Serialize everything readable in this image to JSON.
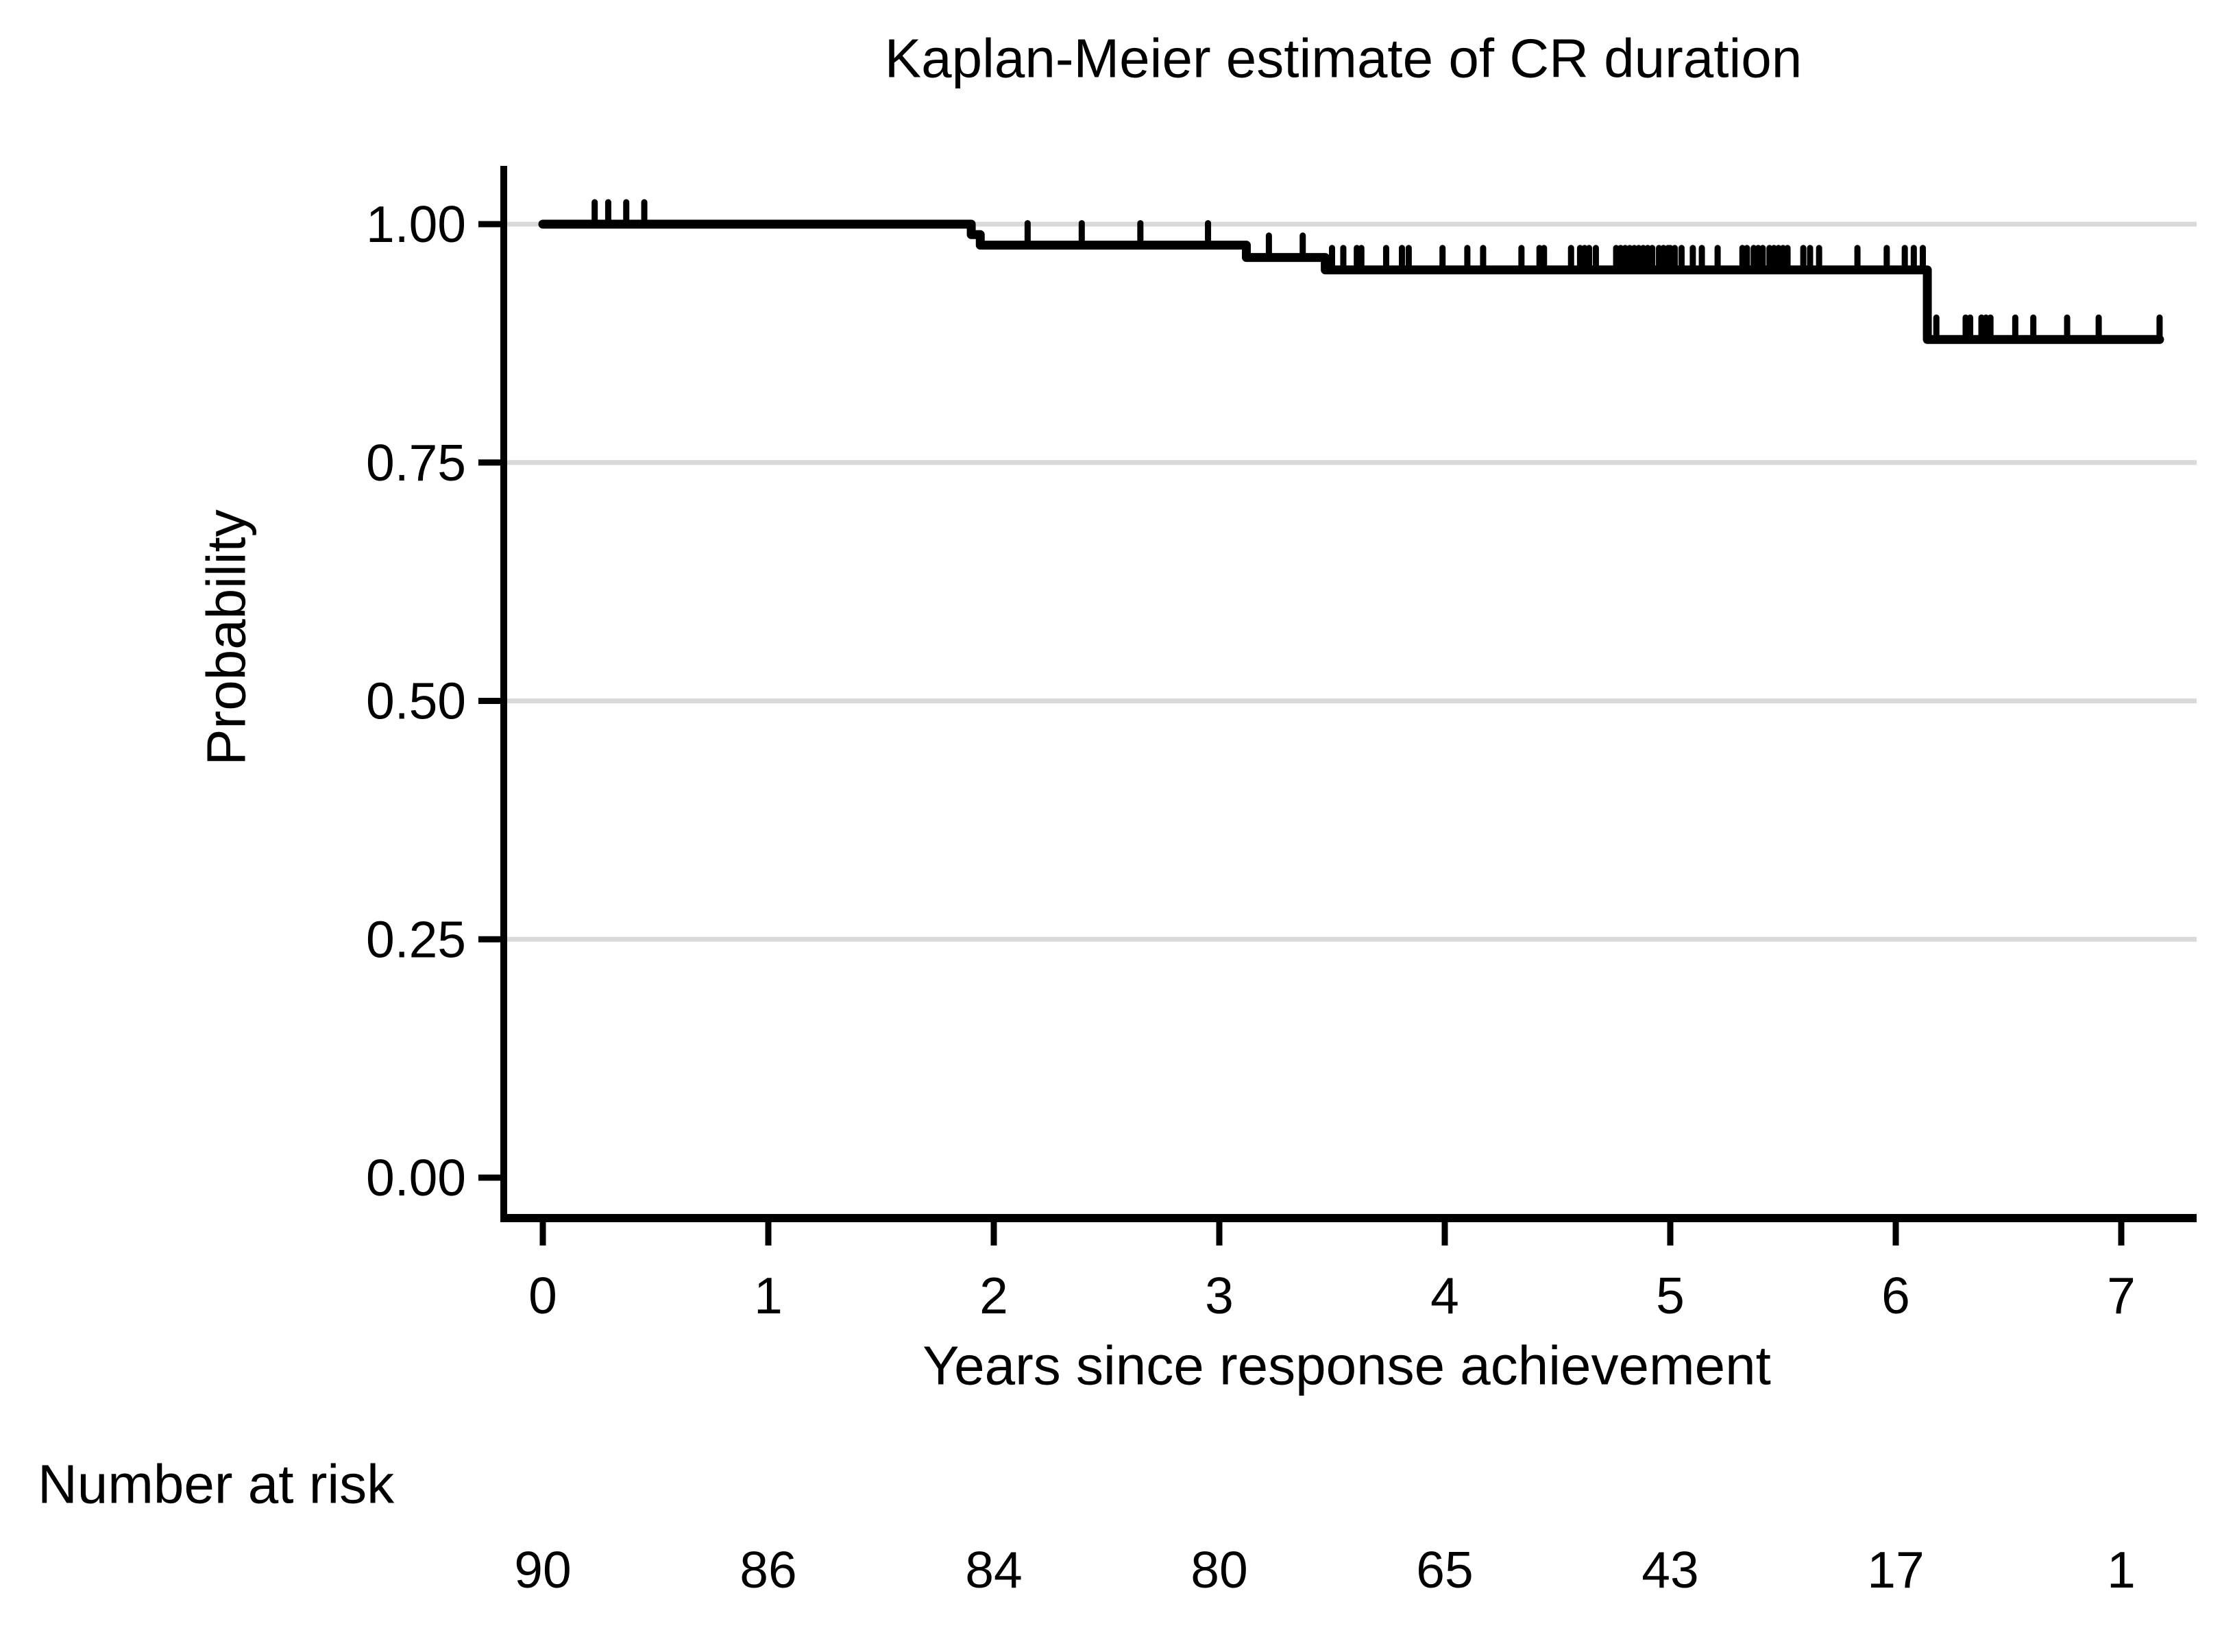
{
  "chart_data": {
    "type": "line",
    "subtype": "kaplan-meier-step",
    "title": "Kaplan-Meier estimate of CR duration",
    "xlabel": "Years since response achievement",
    "ylabel": "Probability",
    "x_ticks": [
      0,
      1,
      2,
      3,
      4,
      5,
      6,
      7
    ],
    "x_tick_labels": [
      "0",
      "1",
      "2",
      "3",
      "4",
      "5",
      "6",
      "7"
    ],
    "y_ticks": [
      0.0,
      0.25,
      0.5,
      0.75,
      1.0
    ],
    "y_tick_labels": [
      "0.00",
      "0.25",
      "0.50",
      "0.75",
      "1.00"
    ],
    "grid": true,
    "grid_levels": [
      0.25,
      0.5,
      0.75,
      1.0
    ],
    "xlim": [
      -0.17,
      7.35
    ],
    "ylim": [
      -0.04,
      1.06
    ],
    "legend": "none",
    "series_name": "CR duration",
    "segments": [
      {
        "t_start": 0.0,
        "t_end": 1.9,
        "p": 1.0,
        "censors": [
          0.23,
          0.29,
          0.37,
          0.45
        ]
      },
      {
        "t_start": 1.9,
        "t_end": 1.94,
        "p": 0.989,
        "censors": []
      },
      {
        "t_start": 1.94,
        "t_end": 3.12,
        "p": 0.978,
        "censors": [
          2.15,
          2.39,
          2.65,
          2.95
        ]
      },
      {
        "t_start": 3.12,
        "t_end": 3.47,
        "p": 0.965,
        "censors": [
          3.22,
          3.37
        ]
      },
      {
        "t_start": 3.47,
        "t_end": 6.14,
        "p": 0.952,
        "censors": [
          3.5,
          3.55,
          3.61,
          3.63,
          3.74,
          3.81,
          3.84,
          3.99,
          4.1,
          4.17,
          4.34,
          4.42,
          4.44,
          4.56,
          4.6,
          4.62,
          4.64,
          4.67,
          4.76,
          4.78,
          4.8,
          4.82,
          4.84,
          4.86,
          4.88,
          4.9,
          4.92,
          4.95,
          4.97,
          4.99,
          5.0,
          5.02,
          5.05,
          5.1,
          5.14,
          5.21,
          5.32,
          5.34,
          5.37,
          5.39,
          5.41,
          5.44,
          5.46,
          5.48,
          5.5,
          5.52,
          5.59,
          5.62,
          5.66,
          5.83,
          5.96,
          6.04,
          6.08,
          6.12
        ]
      },
      {
        "t_start": 6.14,
        "t_end": 7.17,
        "p": 0.879,
        "censors": [
          6.18,
          6.31,
          6.33,
          6.38,
          6.4,
          6.42,
          6.53,
          6.61,
          6.76,
          6.9,
          7.17
        ]
      }
    ],
    "risk_table": {
      "label": "Number at risk",
      "times": [
        0,
        1,
        2,
        3,
        4,
        5,
        6,
        7
      ],
      "counts": [
        "90",
        "86",
        "84",
        "80",
        "65",
        "43",
        "17",
        "1"
      ]
    },
    "colors": {
      "curve": "#000000",
      "axis": "#000000",
      "grid": "#d9d9d9",
      "background": "#ffffff",
      "text": "#000000"
    }
  }
}
